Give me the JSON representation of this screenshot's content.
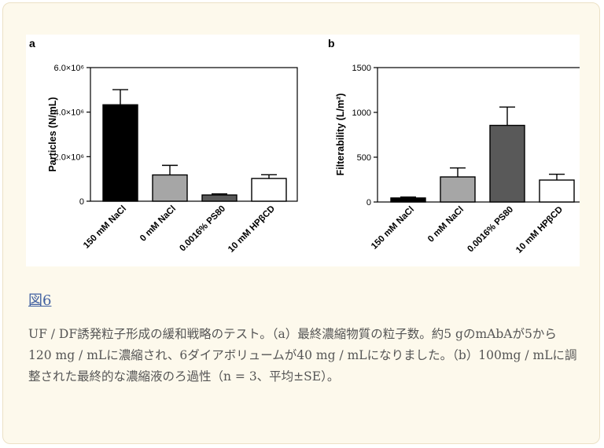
{
  "figure": {
    "label": "図6",
    "caption": "UF / DF誘発粒子形成の緩和戦略のテスト。（a）最終濃縮物質の粒子数。約5 gのmAbAが5から120 mg / mLに濃縮され、6ダイアボリュームが40 mg / mLになりました。（b）100mg / mLに調整された最終的な濃縮液のろ過性（n = 3、平均±SE）。"
  },
  "chart_data": [
    {
      "panel": "a",
      "type": "bar",
      "ylabel": "Particles (N/mL)",
      "categories": [
        "150 mM NaCl",
        "0 mM NaCl",
        "0.0016% PS80",
        "10 mM HPβCD"
      ],
      "values": [
        4330000,
        1180000,
        280000,
        1020000
      ],
      "errors": [
        680000,
        430000,
        50000,
        170000
      ],
      "ylim": [
        0,
        6000000
      ],
      "yticks": [
        "0",
        "2.0×10⁶",
        "4.0×10⁶",
        "6.0×10⁶"
      ],
      "ytick_values": [
        0,
        2000000,
        4000000,
        6000000
      ],
      "colors": [
        "#000000",
        "#a6a6a6",
        "#595959",
        "#ffffff"
      ]
    },
    {
      "panel": "b",
      "type": "bar",
      "ylabel": "Filterability (L/m²)",
      "categories": [
        "150 mM NaCl",
        "0 mM NaCl",
        "0.0016% PS80",
        "10 mM HPβCD"
      ],
      "values": [
        45,
        280,
        855,
        245
      ],
      "errors": [
        10,
        100,
        205,
        65
      ],
      "ylim": [
        0,
        1500
      ],
      "yticks": [
        "0",
        "500",
        "1000",
        "1500"
      ],
      "ytick_values": [
        0,
        500,
        1000,
        1500
      ],
      "colors": [
        "#000000",
        "#a6a6a6",
        "#595959",
        "#ffffff"
      ]
    }
  ]
}
